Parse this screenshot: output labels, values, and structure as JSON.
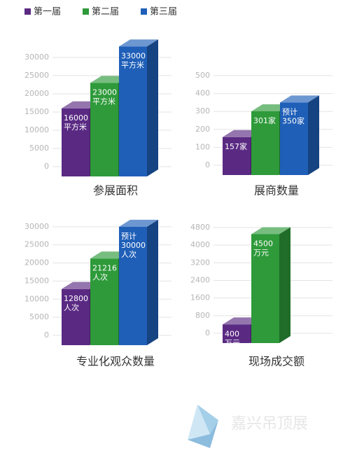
{
  "legend": [
    {
      "name": "第一届",
      "color": "#5a2a83"
    },
    {
      "name": "第二届",
      "color": "#2e9a3a"
    },
    {
      "name": "第三届",
      "color": "#1f5fb8"
    }
  ],
  "chart_data": [
    {
      "type": "bar",
      "title": "参展面积",
      "values": [
        16000,
        23000,
        33000
      ],
      "value_labels": [
        [
          "16000",
          "平方米"
        ],
        [
          "23000",
          "平方米"
        ],
        [
          "33000",
          "平方米"
        ]
      ],
      "ylim": [
        0,
        35000
      ],
      "yticks": [
        0,
        5000,
        10000,
        15000,
        20000,
        25000,
        30000
      ],
      "grid": true
    },
    {
      "type": "bar",
      "title": "展商数量",
      "values": [
        157,
        301,
        350
      ],
      "value_labels": [
        [
          "157家"
        ],
        [
          "301家"
        ],
        [
          "预计",
          "350家"
        ]
      ],
      "ylim": [
        0,
        500
      ],
      "yticks": [
        0,
        100,
        200,
        300,
        400,
        500
      ],
      "grid": true
    },
    {
      "type": "bar",
      "title": "专业化观众数量",
      "values": [
        12800,
        21216,
        30000
      ],
      "value_labels": [
        [
          "12800",
          "人次"
        ],
        [
          "21216",
          "人次"
        ],
        [
          "预计",
          "30000",
          "人次"
        ]
      ],
      "ylim": [
        0,
        35000
      ],
      "yticks": [
        0,
        5000,
        10000,
        15000,
        20000,
        25000,
        30000
      ],
      "grid": true
    },
    {
      "type": "bar",
      "title": "现场成交额",
      "values": [
        400,
        4500,
        null
      ],
      "value_labels": [
        [
          "400",
          "万元"
        ],
        [
          "4500",
          "万元"
        ],
        null
      ],
      "ylim": [
        0,
        4800
      ],
      "yticks": [
        0,
        800,
        1600,
        2400,
        3200,
        4000,
        4800
      ],
      "grid": true
    }
  ],
  "watermark": "嘉兴吊顶展"
}
